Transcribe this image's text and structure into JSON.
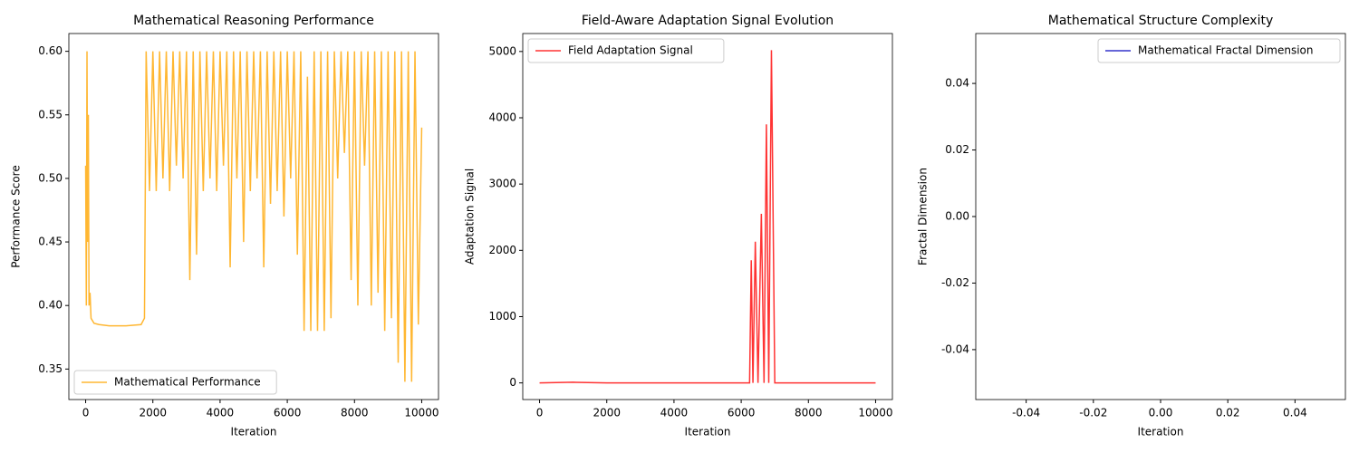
{
  "chart_data": [
    {
      "type": "line",
      "title": "Mathematical Reasoning Performance",
      "xlabel": "Iteration",
      "ylabel": "Performance Score",
      "xlim": [
        -500,
        10500
      ],
      "xticks": [
        0,
        2000,
        4000,
        6000,
        8000,
        10000
      ],
      "ylim": [
        0.326,
        0.614
      ],
      "yticks": [
        0.35,
        {
          "value": 0.4,
          "label": "0.40"
        },
        0.45,
        {
          "value": 0.5,
          "label": "0.50"
        },
        0.55,
        {
          "value": 0.6,
          "label": "0.60"
        }
      ],
      "legend": "lower left",
      "series": [
        {
          "name": "Mathematical Performance",
          "color": "#ffb732",
          "x": [
            0,
            20,
            40,
            60,
            80,
            100,
            130,
            160,
            250,
            400,
            700,
            1200,
            1650,
            1750,
            1800,
            1900,
            2000,
            2100,
            2200,
            2300,
            2400,
            2500,
            2600,
            2700,
            2800,
            2900,
            3000,
            3100,
            3200,
            3300,
            3400,
            3500,
            3600,
            3700,
            3800,
            3900,
            4000,
            4100,
            4200,
            4300,
            4400,
            4500,
            4600,
            4700,
            4800,
            4900,
            5000,
            5100,
            5200,
            5300,
            5400,
            5500,
            5600,
            5700,
            5800,
            5900,
            6000,
            6100,
            6200,
            6300,
            6400,
            6500,
            6600,
            6700,
            6800,
            6900,
            7000,
            7100,
            7200,
            7300,
            7400,
            7500,
            7600,
            7700,
            7800,
            7900,
            8000,
            8100,
            8200,
            8300,
            8400,
            8500,
            8600,
            8700,
            8800,
            8900,
            9000,
            9100,
            9200,
            9300,
            9400,
            9500,
            9600,
            9700,
            9800,
            9900,
            10000
          ],
          "values": [
            0.51,
            0.4,
            0.6,
            0.45,
            0.55,
            0.4,
            0.41,
            0.39,
            0.386,
            0.385,
            0.384,
            0.384,
            0.385,
            0.39,
            0.6,
            0.49,
            0.6,
            0.49,
            0.6,
            0.5,
            0.6,
            0.49,
            0.6,
            0.51,
            0.6,
            0.5,
            0.6,
            0.42,
            0.6,
            0.44,
            0.6,
            0.49,
            0.6,
            0.5,
            0.6,
            0.49,
            0.6,
            0.51,
            0.6,
            0.43,
            0.6,
            0.5,
            0.6,
            0.45,
            0.6,
            0.49,
            0.6,
            0.5,
            0.6,
            0.43,
            0.6,
            0.48,
            0.6,
            0.49,
            0.6,
            0.47,
            0.6,
            0.5,
            0.6,
            0.44,
            0.6,
            0.38,
            0.58,
            0.38,
            0.6,
            0.38,
            0.6,
            0.38,
            0.6,
            0.39,
            0.6,
            0.5,
            0.6,
            0.52,
            0.6,
            0.42,
            0.6,
            0.4,
            0.6,
            0.51,
            0.6,
            0.4,
            0.6,
            0.41,
            0.6,
            0.38,
            0.6,
            0.39,
            0.6,
            0.355,
            0.6,
            0.34,
            0.6,
            0.34,
            0.6,
            0.385,
            0.54
          ]
        }
      ]
    },
    {
      "type": "line",
      "title": "Field-Aware Adaptation Signal Evolution",
      "xlabel": "Iteration",
      "ylabel": "Adaptation Signal",
      "xlim": [
        -500,
        10500
      ],
      "xticks": [
        0,
        2000,
        4000,
        6000,
        8000,
        10000
      ],
      "ylim": [
        -251,
        5271
      ],
      "yticks": [
        0,
        1000,
        2000,
        3000,
        4000,
        5000
      ],
      "legend": "upper left",
      "series": [
        {
          "name": "Field Adaptation Signal",
          "color": "#ff3333",
          "x": [
            0,
            1000,
            2000,
            6250,
            6300,
            6350,
            6420,
            6500,
            6600,
            6680,
            6750,
            6820,
            6900,
            7000,
            10000
          ],
          "values": [
            0,
            10,
            0,
            0,
            1850,
            0,
            2130,
            0,
            2550,
            0,
            3900,
            0,
            5020,
            0,
            0
          ]
        }
      ]
    },
    {
      "type": "line",
      "title": "Mathematical Structure Complexity",
      "xlabel": "Iteration",
      "ylabel": "Fractal Dimension",
      "xlim": [
        -0.055,
        0.055
      ],
      "xticks": [
        -0.04,
        -0.02,
        {
          "value": 0,
          "label": "0.00"
        },
        0.02,
        0.04
      ],
      "ylim": [
        -0.055,
        0.055
      ],
      "yticks": [
        -0.04,
        -0.02,
        {
          "value": 0,
          "label": "0.00"
        },
        0.02,
        0.04
      ],
      "legend": "upper right",
      "series": [
        {
          "name": "Mathematical Fractal Dimension",
          "color": "#3333cc",
          "x": [],
          "values": []
        }
      ]
    }
  ]
}
